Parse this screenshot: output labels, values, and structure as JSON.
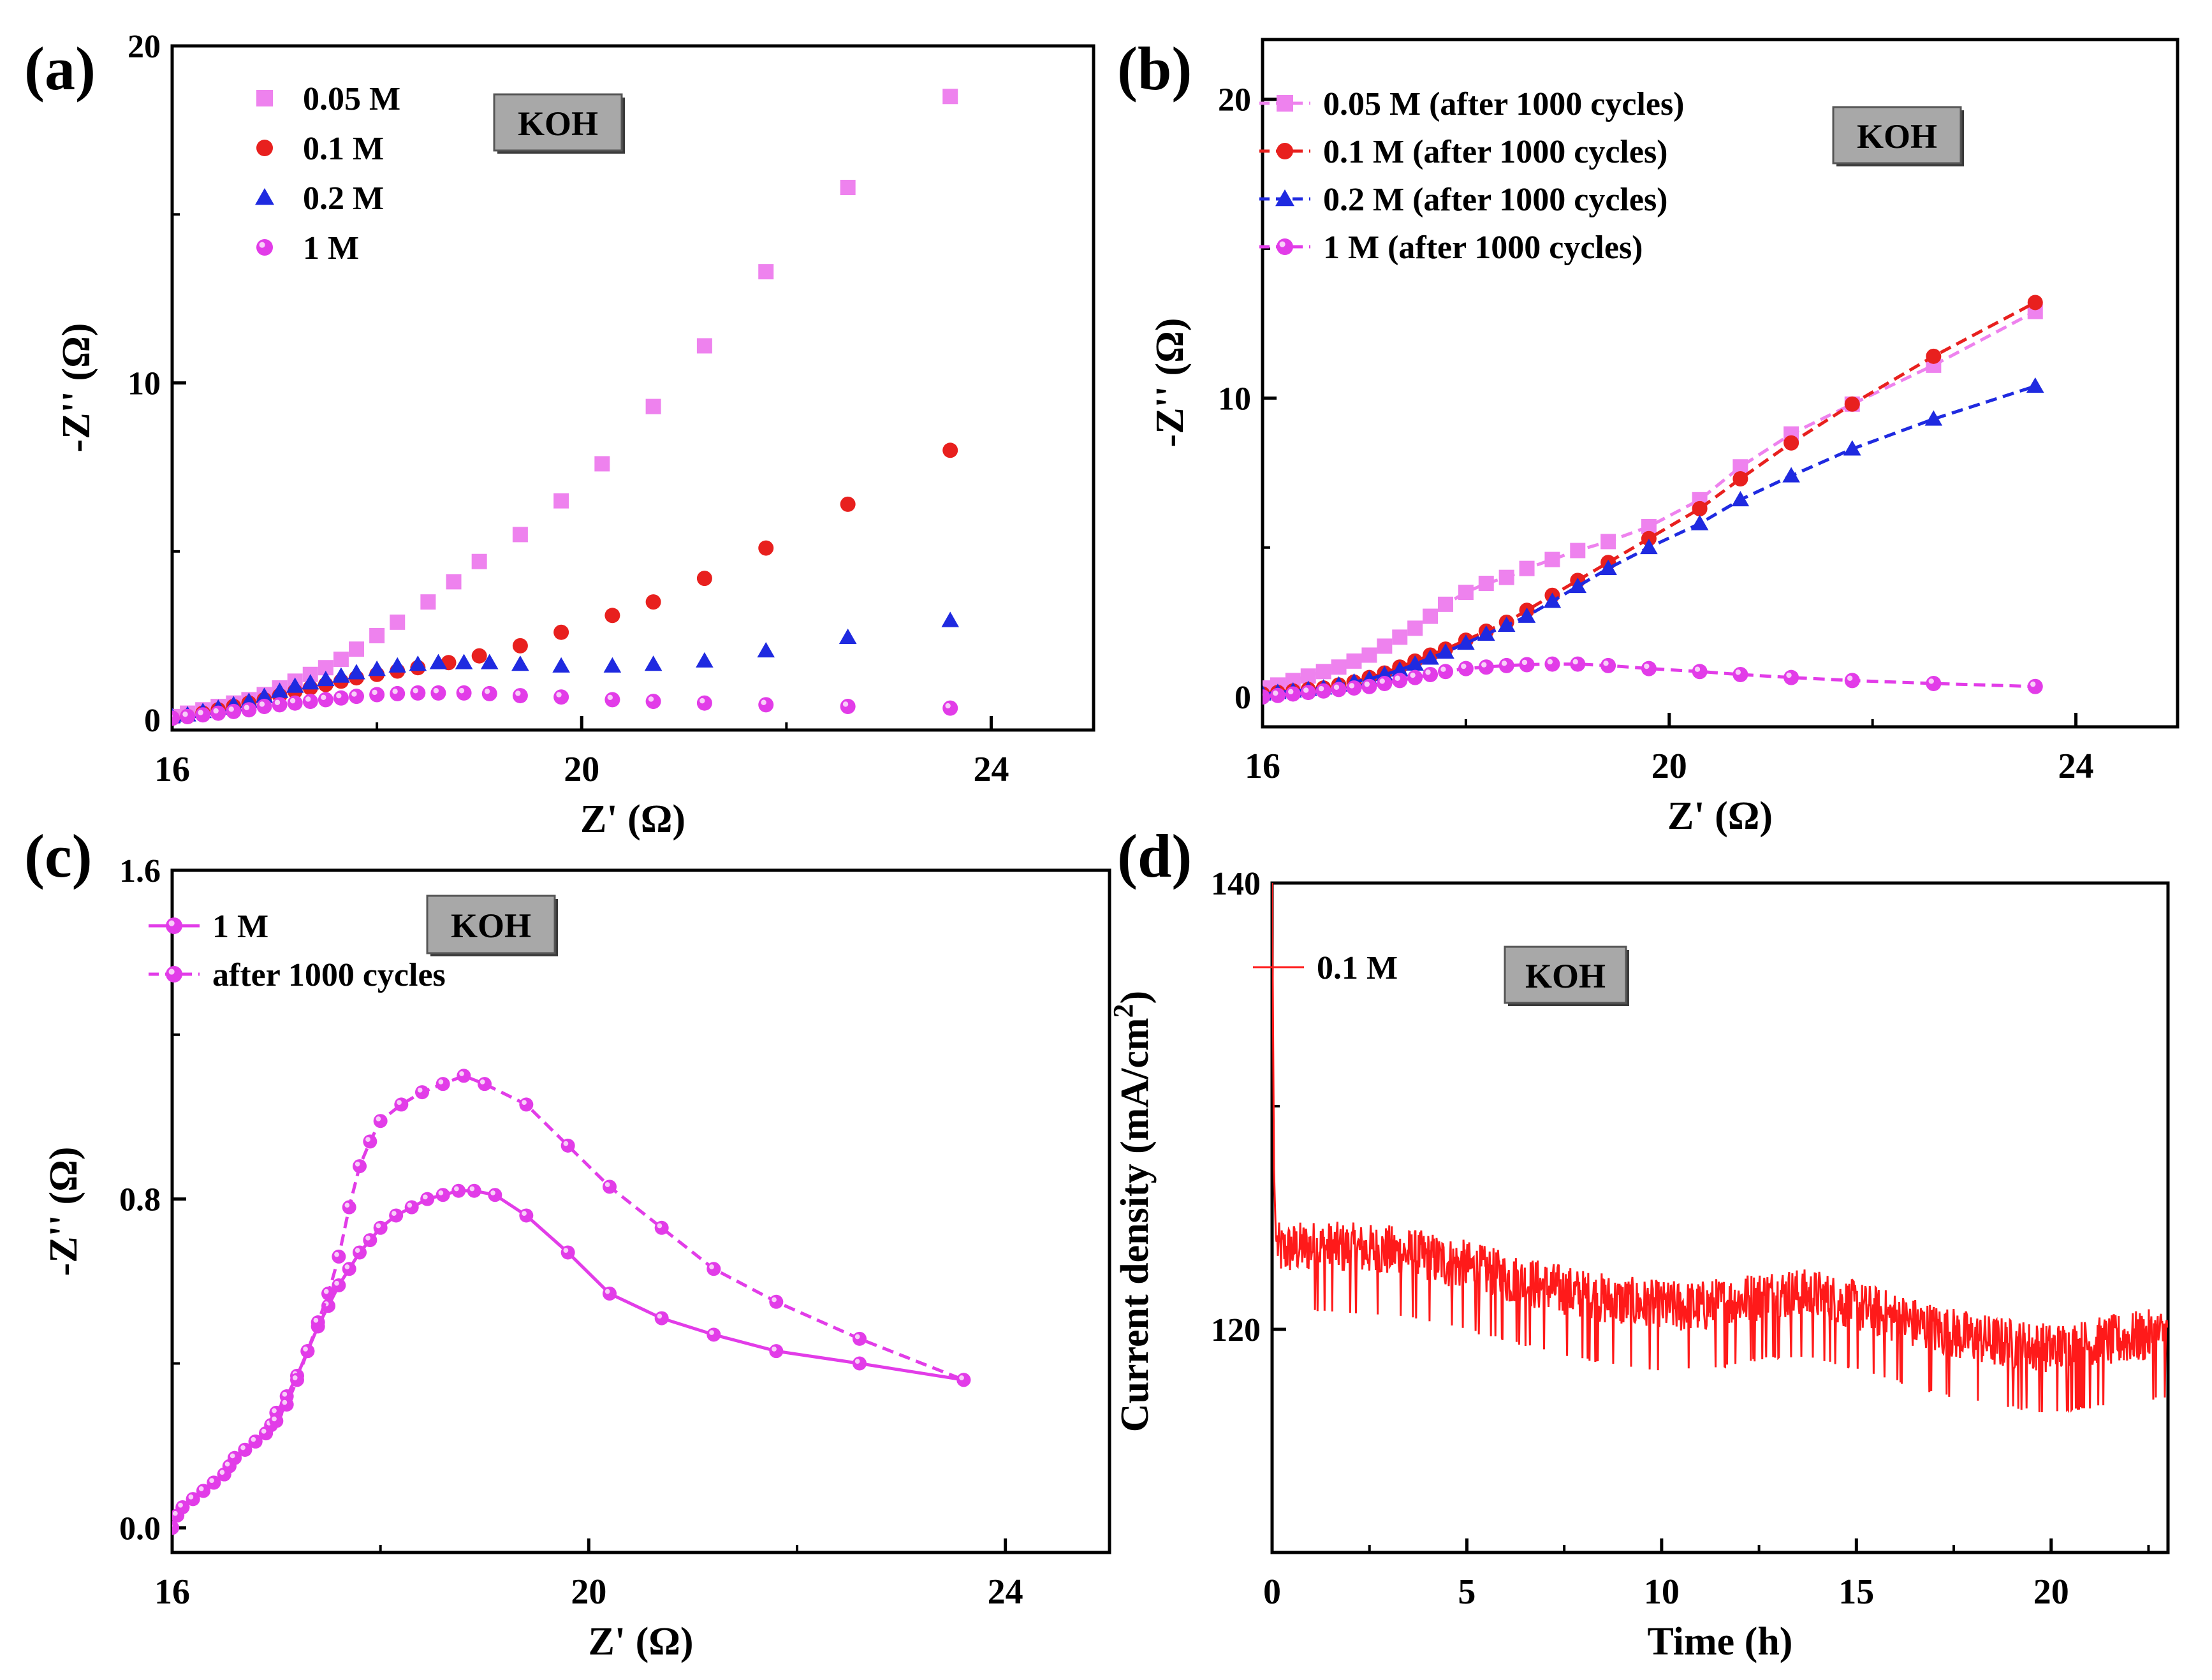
{
  "colors": {
    "pink": "#EE82EE",
    "red": "#E8201E",
    "blue": "#1F2AE0",
    "magenta": "#E23CE8",
    "trace": "#FF1A1A",
    "koh_fill": "#A8A8A8"
  },
  "chart_data": [
    {
      "id": "a",
      "panel_label": "(a)",
      "type": "scatter",
      "xlabel": "Z' (Ω)",
      "ylabel": "-Z'' (Ω)",
      "xlim": [
        16,
        25
      ],
      "ylim": [
        -0.3,
        20
      ],
      "xticks": [
        16,
        20,
        24
      ],
      "xtick_labels": [
        "16",
        "20",
        "24"
      ],
      "yticks": [
        0,
        10,
        20
      ],
      "ytick_labels": [
        "0",
        "10",
        "20"
      ],
      "badge": "KOH",
      "legend_position": "top-left",
      "series": [
        {
          "name": "0.05 M",
          "marker": "square",
          "line": "none",
          "color": "pink",
          "x": [
            16.0,
            16.15,
            16.3,
            16.45,
            16.6,
            16.75,
            16.9,
            17.05,
            17.2,
            17.35,
            17.5,
            17.65,
            17.8,
            18.0,
            18.2,
            18.5,
            18.75,
            19.0,
            19.4,
            19.8,
            20.2,
            20.7,
            21.2,
            21.8,
            22.6,
            23.6
          ],
          "y": [
            0.1,
            0.2,
            0.3,
            0.4,
            0.5,
            0.6,
            0.75,
            0.95,
            1.15,
            1.35,
            1.55,
            1.8,
            2.1,
            2.5,
            2.9,
            3.5,
            4.1,
            4.7,
            5.5,
            6.5,
            7.6,
            9.3,
            11.1,
            13.3,
            15.8,
            18.5
          ]
        },
        {
          "name": "0.1 M",
          "marker": "circle",
          "line": "none",
          "color": "red",
          "x": [
            16.0,
            16.15,
            16.3,
            16.45,
            16.6,
            16.75,
            16.9,
            17.05,
            17.2,
            17.35,
            17.5,
            17.65,
            17.8,
            18.0,
            18.2,
            18.4,
            18.7,
            19.0,
            19.4,
            19.8,
            20.3,
            20.7,
            21.2,
            21.8,
            22.6,
            23.6
          ],
          "y": [
            0.05,
            0.1,
            0.2,
            0.3,
            0.4,
            0.5,
            0.6,
            0.72,
            0.85,
            0.95,
            1.05,
            1.15,
            1.25,
            1.35,
            1.45,
            1.55,
            1.7,
            1.9,
            2.2,
            2.6,
            3.1,
            3.5,
            4.2,
            5.1,
            6.4,
            8.0
          ]
        },
        {
          "name": "0.2 M",
          "marker": "triangle",
          "line": "none",
          "color": "blue",
          "x": [
            16.0,
            16.15,
            16.3,
            16.45,
            16.6,
            16.75,
            16.9,
            17.05,
            17.2,
            17.35,
            17.5,
            17.65,
            17.8,
            18.0,
            18.2,
            18.4,
            18.6,
            18.85,
            19.1,
            19.4,
            19.8,
            20.3,
            20.7,
            21.2,
            21.8,
            22.6,
            23.6
          ],
          "y": [
            0.1,
            0.15,
            0.25,
            0.35,
            0.45,
            0.55,
            0.7,
            0.85,
            1.0,
            1.1,
            1.2,
            1.3,
            1.4,
            1.5,
            1.6,
            1.65,
            1.7,
            1.7,
            1.7,
            1.65,
            1.6,
            1.6,
            1.65,
            1.75,
            2.05,
            2.45,
            2.95
          ]
        },
        {
          "name": "1 M",
          "marker": "ring",
          "line": "none",
          "color": "magenta",
          "x": [
            16.0,
            16.15,
            16.3,
            16.45,
            16.6,
            16.75,
            16.9,
            17.05,
            17.2,
            17.35,
            17.5,
            17.65,
            17.8,
            18.0,
            18.2,
            18.4,
            18.6,
            18.85,
            19.1,
            19.4,
            19.8,
            20.3,
            20.7,
            21.2,
            21.8,
            22.6,
            23.6
          ],
          "y": [
            0.05,
            0.1,
            0.15,
            0.2,
            0.25,
            0.3,
            0.4,
            0.45,
            0.5,
            0.55,
            0.6,
            0.65,
            0.7,
            0.75,
            0.78,
            0.8,
            0.8,
            0.8,
            0.78,
            0.72,
            0.68,
            0.6,
            0.55,
            0.5,
            0.45,
            0.4,
            0.35
          ]
        }
      ]
    },
    {
      "id": "b",
      "panel_label": "(b)",
      "type": "line",
      "xlabel": "Z' (Ω)",
      "ylabel": "-Z'' (Ω)",
      "xlim": [
        16,
        25
      ],
      "ylim": [
        -1,
        22
      ],
      "xticks": [
        16,
        20,
        24
      ],
      "xtick_labels": [
        "16",
        "20",
        "24"
      ],
      "yticks": [
        0,
        10,
        20
      ],
      "ytick_labels": [
        "0",
        "10",
        "20"
      ],
      "badge": "KOH",
      "legend_position": "top-left",
      "series": [
        {
          "name": "0.05 M (after 1000 cycles)",
          "marker": "square",
          "line": "dashed",
          "color": "pink",
          "x": [
            16.0,
            16.15,
            16.3,
            16.45,
            16.6,
            16.75,
            16.9,
            17.05,
            17.2,
            17.35,
            17.5,
            17.65,
            17.8,
            18.0,
            18.2,
            18.4,
            18.6,
            18.85,
            19.1,
            19.4,
            19.8,
            20.3,
            20.7,
            21.2,
            21.8,
            22.6,
            23.6
          ],
          "y": [
            0.3,
            0.4,
            0.55,
            0.7,
            0.85,
            1.0,
            1.2,
            1.4,
            1.7,
            2.0,
            2.3,
            2.7,
            3.1,
            3.5,
            3.8,
            4.0,
            4.3,
            4.6,
            4.9,
            5.2,
            5.7,
            6.6,
            7.7,
            8.8,
            9.8,
            11.1,
            12.9
          ]
        },
        {
          "name": "0.1 M (after 1000 cycles)",
          "marker": "circle",
          "line": "dashed",
          "color": "red",
          "x": [
            16.0,
            16.15,
            16.3,
            16.45,
            16.6,
            16.75,
            16.9,
            17.05,
            17.2,
            17.35,
            17.5,
            17.65,
            17.8,
            18.0,
            18.2,
            18.4,
            18.6,
            18.85,
            19.1,
            19.4,
            19.8,
            20.3,
            20.7,
            21.2,
            21.8,
            22.6,
            23.6
          ],
          "y": [
            0.1,
            0.15,
            0.2,
            0.25,
            0.3,
            0.4,
            0.5,
            0.65,
            0.8,
            1.0,
            1.2,
            1.4,
            1.6,
            1.9,
            2.2,
            2.5,
            2.9,
            3.4,
            3.9,
            4.5,
            5.3,
            6.3,
            7.3,
            8.5,
            9.8,
            11.4,
            13.2
          ]
        },
        {
          "name": "0.2 M (after 1000 cycles)",
          "marker": "triangle",
          "line": "dashed",
          "color": "blue",
          "x": [
            16.0,
            16.15,
            16.3,
            16.45,
            16.6,
            16.75,
            16.9,
            17.05,
            17.2,
            17.35,
            17.5,
            17.65,
            17.8,
            18.0,
            18.2,
            18.4,
            18.6,
            18.85,
            19.1,
            19.4,
            19.8,
            20.3,
            20.7,
            21.2,
            21.8,
            22.6,
            23.6
          ],
          "y": [
            0.1,
            0.15,
            0.2,
            0.25,
            0.3,
            0.4,
            0.5,
            0.6,
            0.75,
            0.9,
            1.1,
            1.3,
            1.5,
            1.8,
            2.1,
            2.4,
            2.7,
            3.2,
            3.7,
            4.3,
            5.0,
            5.8,
            6.6,
            7.4,
            8.3,
            9.3,
            10.4
          ]
        },
        {
          "name": "1 M (after 1000 cycles)",
          "marker": "ring",
          "line": "dashed",
          "color": "magenta",
          "x": [
            16.0,
            16.15,
            16.3,
            16.45,
            16.6,
            16.75,
            16.9,
            17.05,
            17.2,
            17.35,
            17.5,
            17.65,
            17.8,
            18.0,
            18.2,
            18.4,
            18.6,
            18.85,
            19.1,
            19.4,
            19.8,
            20.3,
            20.7,
            21.2,
            21.8,
            22.6,
            23.6
          ],
          "y": [
            0.0,
            0.05,
            0.1,
            0.15,
            0.2,
            0.25,
            0.3,
            0.35,
            0.45,
            0.55,
            0.65,
            0.75,
            0.85,
            0.95,
            1.0,
            1.05,
            1.08,
            1.1,
            1.1,
            1.05,
            0.95,
            0.85,
            0.75,
            0.65,
            0.55,
            0.45,
            0.35
          ]
        }
      ]
    },
    {
      "id": "c",
      "panel_label": "(c)",
      "type": "line",
      "xlabel": "Z' (Ω)",
      "ylabel": "-Z'' (Ω)",
      "xlim": [
        16,
        25
      ],
      "ylim": [
        -0.06,
        1.6
      ],
      "xticks": [
        16,
        20,
        24
      ],
      "xtick_labels": [
        "16",
        "20",
        "24"
      ],
      "yticks": [
        0.0,
        0.8,
        1.6
      ],
      "ytick_labels": [
        "0.0",
        "0.8",
        "1.6"
      ],
      "badge": "KOH",
      "legend_position": "top-left",
      "series": [
        {
          "name": "1 M",
          "marker": "ring",
          "line": "solid",
          "color": "magenta",
          "x": [
            16.0,
            16.05,
            16.1,
            16.2,
            16.3,
            16.4,
            16.5,
            16.55,
            16.6,
            16.7,
            16.8,
            16.9,
            16.95,
            17.0,
            17.1,
            17.2,
            17.3,
            17.4,
            17.5,
            17.6,
            17.7,
            17.8,
            17.9,
            18.0,
            18.15,
            18.3,
            18.45,
            18.6,
            18.75,
            18.9,
            19.1,
            19.4,
            19.8,
            20.2,
            20.7,
            21.2,
            21.8,
            22.6,
            23.6
          ],
          "y": [
            0.0,
            0.03,
            0.05,
            0.07,
            0.09,
            0.11,
            0.13,
            0.15,
            0.17,
            0.19,
            0.21,
            0.23,
            0.25,
            0.28,
            0.32,
            0.37,
            0.43,
            0.49,
            0.54,
            0.59,
            0.63,
            0.67,
            0.7,
            0.73,
            0.76,
            0.78,
            0.8,
            0.81,
            0.82,
            0.82,
            0.81,
            0.76,
            0.67,
            0.57,
            0.51,
            0.47,
            0.43,
            0.4,
            0.36
          ]
        },
        {
          "name": "after 1000 cycles",
          "marker": "ring",
          "line": "dashed",
          "color": "magenta",
          "x": [
            16.0,
            16.1,
            16.2,
            16.3,
            16.4,
            16.5,
            16.55,
            16.6,
            16.7,
            16.8,
            16.9,
            17.0,
            17.1,
            17.2,
            17.3,
            17.4,
            17.5,
            17.6,
            17.7,
            17.8,
            17.9,
            18.0,
            18.2,
            18.4,
            18.6,
            18.8,
            19.0,
            19.4,
            19.8,
            20.2,
            20.7,
            21.2,
            21.8,
            22.6,
            23.6
          ],
          "y": [
            0.0,
            0.05,
            0.07,
            0.09,
            0.11,
            0.13,
            0.15,
            0.17,
            0.19,
            0.21,
            0.23,
            0.26,
            0.3,
            0.36,
            0.43,
            0.5,
            0.57,
            0.66,
            0.78,
            0.88,
            0.94,
            0.99,
            1.03,
            1.06,
            1.08,
            1.1,
            1.08,
            1.03,
            0.93,
            0.83,
            0.73,
            0.63,
            0.55,
            0.46,
            0.36
          ]
        }
      ]
    },
    {
      "id": "d",
      "panel_label": "(d)",
      "type": "line",
      "xlabel": "Time (h)",
      "ylabel": "Current density (mA/cm",
      "ylabel_superscript": "2",
      "ylabel_suffix": ")",
      "xlim": [
        0,
        23
      ],
      "ylim": [
        110,
        140
      ],
      "xticks": [
        0,
        5,
        10,
        15,
        20
      ],
      "xtick_labels": [
        "0",
        "5",
        "10",
        "15",
        "20"
      ],
      "yticks": [
        120,
        140
      ],
      "ytick_labels": [
        "120",
        "140"
      ],
      "badge": "KOH",
      "legend_position": "top-left",
      "series": [
        {
          "name": "0.1 M",
          "marker": "none",
          "line": "solid",
          "color": "trace",
          "x": [
            0.0,
            0.05,
            0.1,
            0.2,
            0.5,
            1,
            2,
            3,
            4,
            5,
            6,
            7,
            8,
            9,
            10,
            11,
            12,
            13,
            14,
            15,
            16,
            17,
            18,
            19,
            20,
            21,
            22,
            23
          ],
          "y": [
            140,
            127,
            124,
            123.5,
            123.6,
            123.7,
            123.6,
            123.5,
            123.2,
            122.8,
            122.3,
            121.9,
            121.5,
            121.2,
            121.0,
            121.0,
            121.3,
            121.6,
            121.5,
            121.0,
            120.5,
            120.0,
            119.6,
            119.3,
            119.1,
            119.3,
            119.6,
            119.8
          ],
          "noise_amplitude": 1.2
        }
      ]
    }
  ]
}
